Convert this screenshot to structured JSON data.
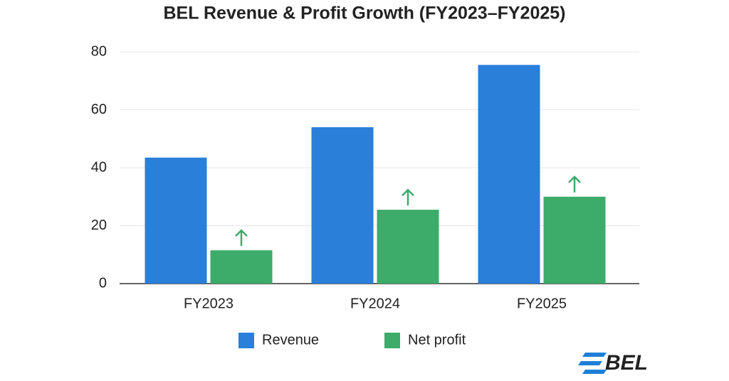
{
  "chart_data": {
    "type": "bar",
    "title": "BEL Revenue & Profit Growth (FY2023–FY2025)",
    "categories": [
      "FY2023",
      "FY2024",
      "FY2025"
    ],
    "series": [
      {
        "name": "Revenue",
        "color": "#2a7fd9",
        "values": [
          43.5,
          54,
          75.5
        ]
      },
      {
        "name": "Net profit",
        "color": "#3dab6a",
        "values": [
          11.5,
          25.5,
          30
        ]
      }
    ],
    "ylim": [
      0,
      80
    ],
    "yticks": [
      0,
      20,
      40,
      60,
      80
    ],
    "grid": true
  },
  "brand": "BEL"
}
